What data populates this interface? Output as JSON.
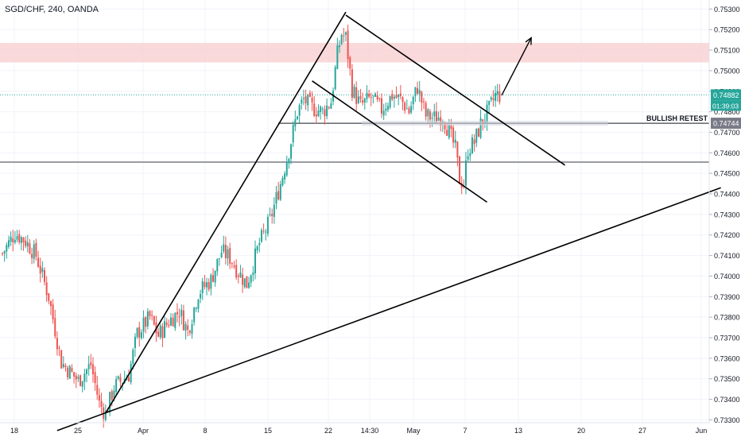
{
  "header": {
    "symbol_label": "SGD/CHF, 240, OANDA"
  },
  "colors": {
    "up": "#26a69a",
    "down": "#ef5350",
    "zone": "#f8c9cc",
    "price_tag_bg": "#26a69a",
    "retest_tag_bg": "#787b86",
    "grid": "#f0f3fa"
  },
  "chart_data": {
    "type": "candlestick",
    "title": "SGD/CHF, 240, OANDA",
    "ylim": [
      0.7329,
      0.7534
    ],
    "y_ticks": [
      "0.75300",
      "0.75200",
      "0.75100",
      "0.75000",
      "0.74900",
      "0.74800",
      "0.74700",
      "0.74600",
      "0.74500",
      "0.74400",
      "0.74300",
      "0.74200",
      "0.74100",
      "0.74000",
      "0.73900",
      "0.73800",
      "0.73700",
      "0.73600",
      "0.73500",
      "0.73400",
      "0.73300"
    ],
    "x_ticks": [
      "18",
      "25",
      "Apr",
      "8",
      "15",
      "22",
      "14:30",
      "May",
      "7",
      "13",
      "20",
      "27",
      "Jun"
    ],
    "current_price": "0.74882",
    "countdown": "01:39:03",
    "retest_price": "0.74744",
    "annotation": "BULLISH RETEST",
    "horizontal_support": 0.74555,
    "resistance_zone": [
      0.7504,
      0.75135
    ],
    "waypoints": [
      [
        0,
        0.7411
      ],
      [
        6,
        0.7421
      ],
      [
        11,
        0.7417
      ],
      [
        16,
        0.741
      ],
      [
        22,
        0.739
      ],
      [
        28,
        0.7358
      ],
      [
        36,
        0.7349
      ],
      [
        42,
        0.7357
      ],
      [
        46,
        0.7338
      ],
      [
        49,
        0.7333
      ],
      [
        53,
        0.7346
      ],
      [
        60,
        0.7352
      ],
      [
        64,
        0.7372
      ],
      [
        70,
        0.738
      ],
      [
        74,
        0.7371
      ],
      [
        79,
        0.7378
      ],
      [
        84,
        0.7383
      ],
      [
        88,
        0.7373
      ],
      [
        93,
        0.7392
      ],
      [
        99,
        0.7398
      ],
      [
        104,
        0.7412
      ],
      [
        108,
        0.7409
      ],
      [
        112,
        0.7402
      ],
      [
        116,
        0.7396
      ],
      [
        122,
        0.7416
      ],
      [
        127,
        0.7427
      ],
      [
        132,
        0.7445
      ],
      [
        136,
        0.7461
      ],
      [
        140,
        0.748
      ],
      [
        143,
        0.7486
      ],
      [
        147,
        0.7482
      ],
      [
        152,
        0.748
      ],
      [
        156,
        0.7485
      ],
      [
        159,
        0.7508
      ],
      [
        161,
        0.7518
      ],
      [
        163,
        0.7516
      ],
      [
        166,
        0.7491
      ],
      [
        170,
        0.7483
      ],
      [
        175,
        0.7487
      ],
      [
        180,
        0.7481
      ],
      [
        185,
        0.7488
      ],
      [
        189,
        0.7486
      ],
      [
        193,
        0.748
      ],
      [
        197,
        0.7492
      ],
      [
        201,
        0.7478
      ],
      [
        205,
        0.7477
      ],
      [
        209,
        0.7478
      ],
      [
        212,
        0.747
      ],
      [
        215,
        0.7462
      ],
      [
        217,
        0.7447
      ],
      [
        219,
        0.7445
      ],
      [
        221,
        0.7462
      ],
      [
        224,
        0.7465
      ],
      [
        227,
        0.7474
      ],
      [
        231,
        0.7481
      ],
      [
        234,
        0.7488
      ],
      [
        236,
        0.7488
      ]
    ],
    "drawings": {
      "lines": [
        {
          "name": "rising-channel-line",
          "from": [
            49,
            0.73333
          ],
          "to": [
            163,
            0.75285
          ]
        },
        {
          "name": "channel-upper-line",
          "from": [
            163,
            0.7527
          ],
          "to": [
            267,
            0.7454
          ]
        },
        {
          "name": "channel-lower-line",
          "from": [
            147,
            0.7495
          ],
          "to": [
            230,
            0.7436
          ]
        },
        {
          "name": "long-trend-line",
          "from": [
            26,
            0.73248
          ],
          "to": [
            341,
            0.7443
          ]
        }
      ],
      "arrow": {
        "from": [
          237,
          0.7488
        ],
        "to": [
          251,
          0.7516
        ]
      }
    }
  }
}
